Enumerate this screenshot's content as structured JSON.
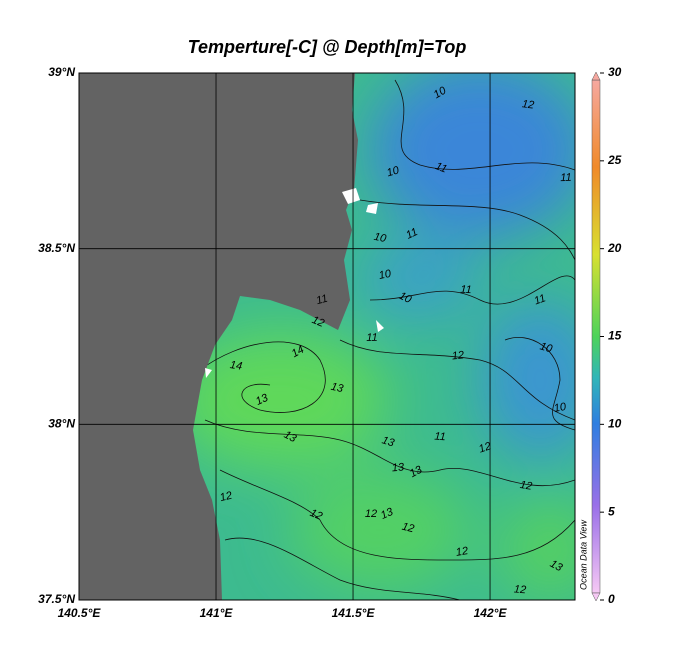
{
  "title": "Temperture[-C] @ Depth[m]=Top",
  "map": {
    "lonlim": [
      140.5,
      142.31
    ],
    "latlim": [
      37.5,
      39
    ],
    "lonticks": [
      {
        "value": 140.5,
        "label": "140.5°E"
      },
      {
        "value": 141,
        "label": "141°E"
      },
      {
        "value": 141.5,
        "label": "141.5°E"
      },
      {
        "value": 142,
        "label": "142°E"
      }
    ],
    "latticks": [
      {
        "value": 37.5,
        "label": "37.5°N"
      },
      {
        "value": 38,
        "label": "38°N"
      },
      {
        "value": 38.5,
        "label": "38.5°N"
      },
      {
        "value": 39,
        "label": "39°N"
      }
    ]
  },
  "colorbar": {
    "lim": [
      0,
      30
    ],
    "ticks": [
      0,
      5,
      10,
      15,
      20,
      25,
      30
    ]
  },
  "contour_labels": [
    10,
    12,
    10,
    11,
    11,
    11,
    10,
    10,
    10,
    11,
    11,
    10,
    12,
    14,
    14,
    11,
    12,
    11,
    13,
    13,
    10,
    13,
    11,
    12,
    13,
    13,
    13,
    12,
    12,
    12,
    12,
    13,
    12,
    12,
    13,
    12
  ],
  "watermark": "Ocean Data View"
}
